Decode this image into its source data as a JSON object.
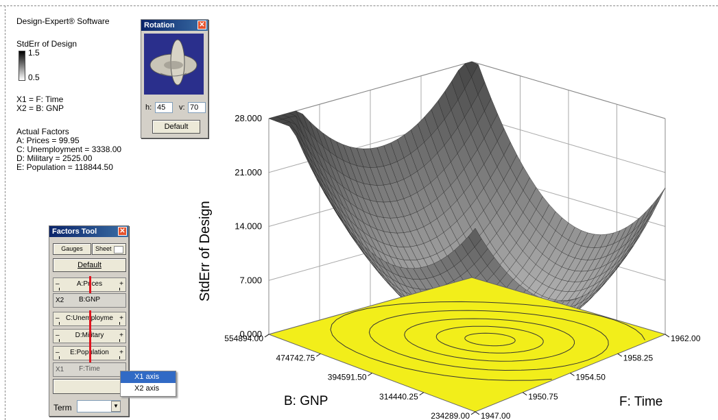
{
  "app_title": "Design-Expert® Software",
  "legend": {
    "title": "StdErr of Design",
    "max": "1.5",
    "min": "0.5"
  },
  "axes_assignment": {
    "x1": "X1 = F: Time",
    "x2": "X2 = B: GNP"
  },
  "actual_factors": {
    "heading": "Actual Factors",
    "items": [
      "A: Prices = 99.95",
      "C: Unemployment = 3338.00",
      "D: Military = 2525.00",
      "E: Population = 118844.50"
    ]
  },
  "rotation": {
    "title": "Rotation",
    "h_label": "h:",
    "h_value": "45",
    "v_label": "v:",
    "v_value": "70",
    "default_label": "Default"
  },
  "factors_tool": {
    "title": "Factors Tool",
    "gauges_label": "Gauges",
    "sheet_label": "Sheet",
    "default_label": "Default",
    "factors": [
      {
        "label": "A:Prices",
        "type": "slider"
      },
      {
        "label": "B:GNP",
        "type": "axis",
        "tag": "X2"
      },
      {
        "label": "C:Unemployme",
        "type": "slider"
      },
      {
        "label": "D:Military",
        "type": "slider"
      },
      {
        "label": "E:Population",
        "type": "slider"
      },
      {
        "label": "F:Time",
        "type": "axis",
        "tag": "X1"
      }
    ],
    "term_label": "Term",
    "minus": "–",
    "plus": "+"
  },
  "context_menu": {
    "items": [
      "X1 axis",
      "X2 axis"
    ],
    "selected": 0
  },
  "chart_data": {
    "type": "surface3d",
    "zlabel": "StdErr of Design",
    "z_ticks": [
      "0.000",
      "7.000",
      "14.000",
      "21.000",
      "28.000"
    ],
    "x_axis": {
      "label": "F: Time",
      "ticks": [
        "1947.00",
        "1950.75",
        "1954.50",
        "1958.25",
        "1962.00"
      ]
    },
    "y_axis": {
      "label": "B: GNP",
      "ticks": [
        "234289.00",
        "314440.25",
        "394591.50",
        "474742.75",
        "554894.00"
      ]
    },
    "corner_values": {
      "back_left": 28.0,
      "right": 27.0,
      "front_left": 26.0,
      "center_min": 0.5
    },
    "contour_color": "#f2ee1a",
    "surface_color": "#7a7a7a"
  }
}
